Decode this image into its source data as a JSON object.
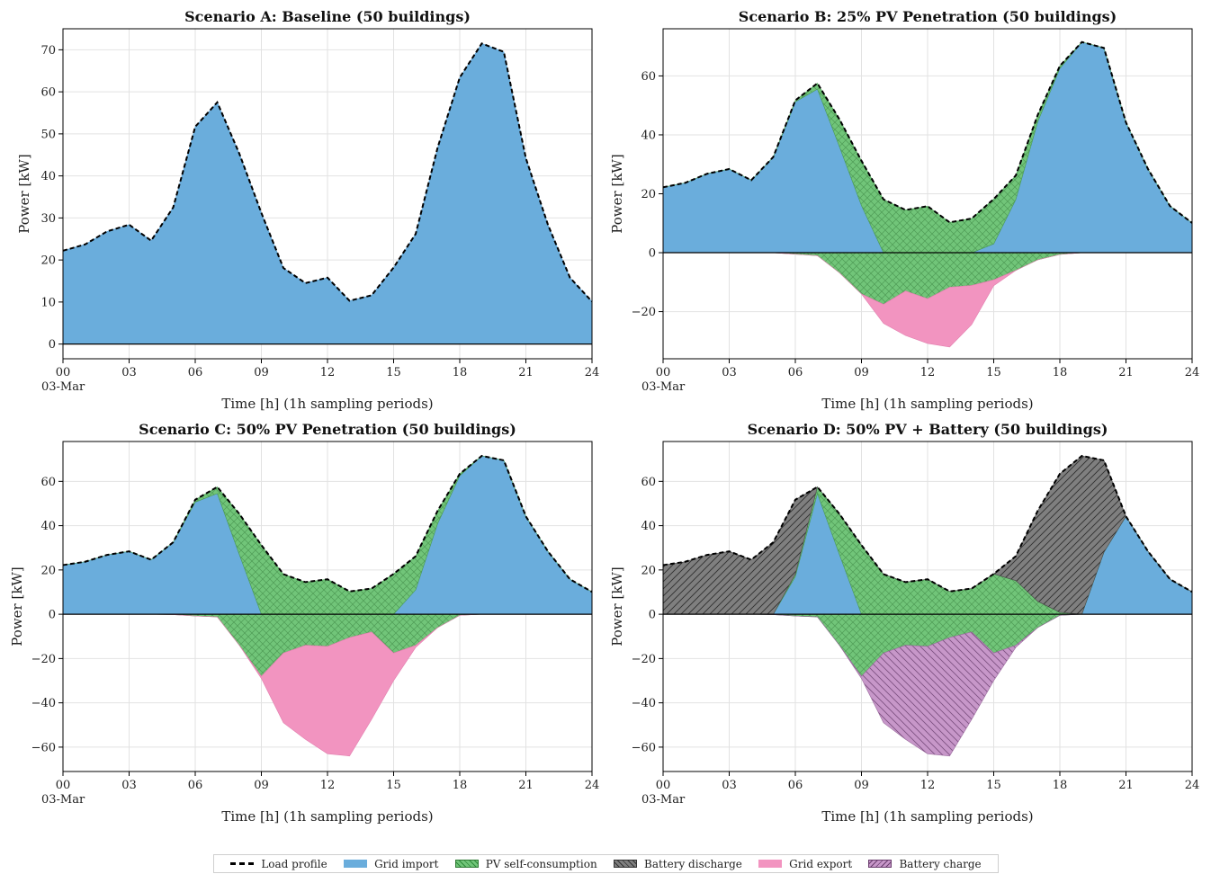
{
  "legend": [
    {
      "key": "load",
      "label": "Load profile"
    },
    {
      "key": "grid_import",
      "label": "Grid import"
    },
    {
      "key": "pv_self",
      "label": "PV self-consumption"
    },
    {
      "key": "bat_dis",
      "label": "Battery discharge"
    },
    {
      "key": "grid_export",
      "label": "Grid export"
    },
    {
      "key": "bat_charge",
      "label": "Battery charge"
    }
  ],
  "colors": {
    "grid_import": "#6aaddc",
    "pv_self": "#71c579",
    "bat_dis": "#7f7f7f",
    "grid_export": "#f294c0",
    "bat_charge": "#c797c9",
    "load": "#000000"
  },
  "chart_data": [
    {
      "type": "area",
      "title": "Scenario A: Baseline (50 buildings)",
      "xlabel": "Time [h] (1h sampling periods)",
      "ylabel": "Power [kW]",
      "date_label": "03-Mar",
      "x_ticks": [
        "00",
        "03",
        "06",
        "09",
        "12",
        "15",
        "18",
        "21",
        "24"
      ],
      "y_ticks": [
        0,
        10,
        20,
        30,
        40,
        50,
        60,
        70
      ],
      "xlim": [
        0,
        24
      ],
      "ylim": [
        -3.5,
        75
      ],
      "grid": true,
      "hours": [
        0,
        1,
        2,
        3,
        4,
        5,
        6,
        7,
        8,
        9,
        10,
        11,
        12,
        13,
        14,
        15,
        16,
        17,
        18,
        19,
        20,
        21,
        22,
        23,
        24
      ],
      "load": [
        22.2,
        23.7,
        26.8,
        28.4,
        24.6,
        32.5,
        51.7,
        57.5,
        45.3,
        31.2,
        18.1,
        14.5,
        15.8,
        10.3,
        11.6,
        18.2,
        26.2,
        46.8,
        63.4,
        71.5,
        69.5,
        44.2,
        28.4,
        15.8,
        10.1
      ],
      "series": [
        {
          "key": "grid_import",
          "values": [
            22.2,
            23.7,
            26.8,
            28.4,
            24.6,
            32.5,
            51.7,
            57.5,
            45.3,
            31.2,
            18.1,
            14.5,
            15.8,
            10.3,
            11.6,
            18.2,
            26.2,
            46.8,
            63.4,
            71.5,
            69.5,
            44.2,
            28.4,
            15.8,
            10.1
          ]
        }
      ],
      "negative_series": []
    },
    {
      "type": "area",
      "title": "Scenario B: 25% PV Penetration (50 buildings)",
      "xlabel": "Time [h] (1h sampling periods)",
      "ylabel": "Power [kW]",
      "date_label": "03-Mar",
      "x_ticks": [
        "00",
        "03",
        "06",
        "09",
        "12",
        "15",
        "18",
        "21",
        "24"
      ],
      "y_ticks": [
        -20,
        0,
        20,
        40,
        60
      ],
      "xlim": [
        0,
        24
      ],
      "ylim": [
        -36,
        76
      ],
      "grid": true,
      "hours": [
        0,
        1,
        2,
        3,
        4,
        5,
        6,
        7,
        8,
        9,
        10,
        11,
        12,
        13,
        14,
        15,
        16,
        17,
        18,
        19,
        20,
        21,
        22,
        23,
        24
      ],
      "load": [
        22.2,
        23.7,
        26.8,
        28.4,
        24.6,
        32.5,
        51.7,
        57.5,
        45.3,
        31.2,
        18.1,
        14.5,
        15.8,
        10.3,
        11.6,
        18.2,
        26.2,
        46.8,
        63.4,
        71.5,
        69.5,
        44.2,
        28.4,
        15.8,
        10.1
      ],
      "series": [
        {
          "key": "grid_import",
          "values": [
            22.2,
            23.7,
            26.8,
            28.4,
            24.6,
            32.5,
            51.2,
            55.5,
            36,
            16,
            0,
            0,
            0,
            0,
            0,
            3,
            18,
            44.5,
            62.5,
            71.5,
            69.5,
            44.2,
            28.4,
            15.8,
            10.1
          ]
        },
        {
          "key": "pv_self",
          "values": [
            0,
            0,
            0,
            0,
            0,
            0,
            0.5,
            2,
            9.3,
            15.2,
            18.1,
            14.5,
            15.8,
            10.3,
            11.6,
            15.2,
            8.2,
            2.3,
            0.9,
            0,
            0,
            0,
            0,
            0,
            0
          ]
        }
      ],
      "negative_series": [
        {
          "key": "pv_self",
          "values": [
            0,
            0,
            0,
            0,
            0,
            0,
            -0.5,
            -1,
            -6.8,
            -14,
            -17.5,
            -13,
            -15.6,
            -11.7,
            -11.1,
            -9.2,
            -6,
            -2.4,
            -0.6,
            0,
            0,
            0,
            0,
            0,
            0
          ]
        },
        {
          "key": "grid_export",
          "values": [
            0,
            0,
            0,
            0,
            0,
            0,
            0,
            0,
            0,
            0,
            -6.5,
            -15.1,
            -15.2,
            -20.3,
            -13.3,
            -2,
            0,
            0,
            0,
            0,
            0,
            0,
            0,
            0,
            0
          ]
        }
      ]
    },
    {
      "type": "area",
      "title": "Scenario C: 50% PV Penetration (50 buildings)",
      "xlabel": "Time [h] (1h sampling periods)",
      "ylabel": "Power [kW]",
      "date_label": "03-Mar",
      "x_ticks": [
        "00",
        "03",
        "06",
        "09",
        "12",
        "15",
        "18",
        "21",
        "24"
      ],
      "y_ticks": [
        -60,
        -40,
        -20,
        0,
        20,
        40,
        60
      ],
      "xlim": [
        0,
        24
      ],
      "ylim": [
        -71,
        78
      ],
      "grid": true,
      "hours": [
        0,
        1,
        2,
        3,
        4,
        5,
        6,
        7,
        8,
        9,
        10,
        11,
        12,
        13,
        14,
        15,
        16,
        17,
        18,
        19,
        20,
        21,
        22,
        23,
        24
      ],
      "load": [
        22.2,
        23.7,
        26.8,
        28.4,
        24.6,
        32.5,
        51.7,
        57.5,
        45.3,
        31.2,
        18.1,
        14.5,
        15.8,
        10.3,
        11.6,
        18.2,
        26.2,
        46.8,
        63.4,
        71.5,
        69.5,
        44.2,
        28.4,
        15.8,
        10.1
      ],
      "series": [
        {
          "key": "grid_import",
          "values": [
            22.2,
            23.7,
            26.8,
            28.4,
            24.6,
            32.5,
            50.6,
            54.5,
            27,
            0,
            0,
            0,
            0,
            0,
            0,
            0,
            11,
            41,
            62.5,
            71.5,
            69.5,
            44.2,
            28.4,
            15.8,
            10.1
          ]
        },
        {
          "key": "pv_self",
          "values": [
            0,
            0,
            0,
            0,
            0,
            0,
            1.1,
            3,
            18.3,
            31.2,
            18.1,
            14.5,
            15.8,
            10.3,
            11.6,
            18.2,
            15.2,
            5.8,
            0.9,
            0,
            0,
            0,
            0,
            0,
            0
          ]
        }
      ],
      "negative_series": [
        {
          "key": "pv_self",
          "values": [
            0,
            0,
            0,
            0,
            0,
            -0.2,
            -0.8,
            -1.2,
            -14,
            -28,
            -17.5,
            -14,
            -14.5,
            -10.5,
            -8,
            -17.5,
            -14,
            -6,
            -0.5,
            0,
            0,
            0,
            0,
            0,
            0
          ]
        },
        {
          "key": "grid_export",
          "values": [
            0,
            0,
            0,
            0,
            0,
            0,
            0,
            0,
            0,
            -1,
            -31.5,
            -42.5,
            -48.5,
            -53.5,
            -39.5,
            -12.5,
            -1,
            0,
            0,
            0,
            0,
            0,
            0,
            0,
            0
          ]
        }
      ]
    },
    {
      "type": "area",
      "title": "Scenario D: 50% PV + Battery (50 buildings)",
      "xlabel": "Time [h] (1h sampling periods)",
      "ylabel": "Power [kW]",
      "date_label": "03-Mar",
      "x_ticks": [
        "00",
        "03",
        "06",
        "09",
        "12",
        "15",
        "18",
        "21",
        "24"
      ],
      "y_ticks": [
        -60,
        -40,
        -20,
        0,
        20,
        40,
        60
      ],
      "xlim": [
        0,
        24
      ],
      "ylim": [
        -71,
        78
      ],
      "grid": true,
      "hours": [
        0,
        1,
        2,
        3,
        4,
        5,
        6,
        7,
        8,
        9,
        10,
        11,
        12,
        13,
        14,
        15,
        16,
        17,
        18,
        19,
        20,
        21,
        22,
        23,
        24
      ],
      "load": [
        22.2,
        23.7,
        26.8,
        28.4,
        24.6,
        32.5,
        51.7,
        57.5,
        45.3,
        31.2,
        18.1,
        14.5,
        15.8,
        10.3,
        11.6,
        18.2,
        26.2,
        46.8,
        63.4,
        71.5,
        69.5,
        44.2,
        28.4,
        15.8,
        10.1
      ],
      "series": [
        {
          "key": "grid_import",
          "values": [
            0,
            0,
            0,
            0,
            0,
            0,
            17,
            54.5,
            27,
            0,
            0,
            0,
            0,
            0,
            0,
            0,
            0,
            0,
            0,
            0,
            28,
            44.2,
            28.4,
            15.8,
            10.1
          ]
        },
        {
          "key": "pv_self",
          "values": [
            0,
            0,
            0,
            0,
            0,
            0,
            1.1,
            3,
            18.3,
            31.2,
            18.1,
            14.5,
            15.8,
            10.3,
            11.6,
            18.2,
            15.2,
            5.8,
            0.9,
            0,
            0,
            0,
            0,
            0,
            0
          ]
        },
        {
          "key": "bat_dis",
          "values": [
            22.2,
            23.7,
            26.8,
            28.4,
            24.6,
            32.5,
            33.6,
            0,
            0,
            0,
            0,
            0,
            0,
            0,
            0,
            0,
            11,
            41,
            62.5,
            71.5,
            41.5,
            0,
            0,
            0,
            0
          ]
        }
      ],
      "negative_series": [
        {
          "key": "pv_self",
          "values": [
            0,
            0,
            0,
            0,
            0,
            -0.2,
            -0.8,
            -1.2,
            -14,
            -28,
            -17.5,
            -14,
            -14.5,
            -10.5,
            -8,
            -17.5,
            -14,
            -6,
            -0.5,
            0,
            0,
            0,
            0,
            0,
            0
          ]
        },
        {
          "key": "bat_charge",
          "values": [
            0,
            0,
            0,
            0,
            0,
            0,
            0,
            0,
            0,
            -1,
            -31.5,
            -42.5,
            -48.5,
            -53.5,
            -39.5,
            -12.5,
            -1,
            0,
            0,
            0,
            0,
            0,
            0,
            0,
            0
          ]
        }
      ]
    }
  ]
}
